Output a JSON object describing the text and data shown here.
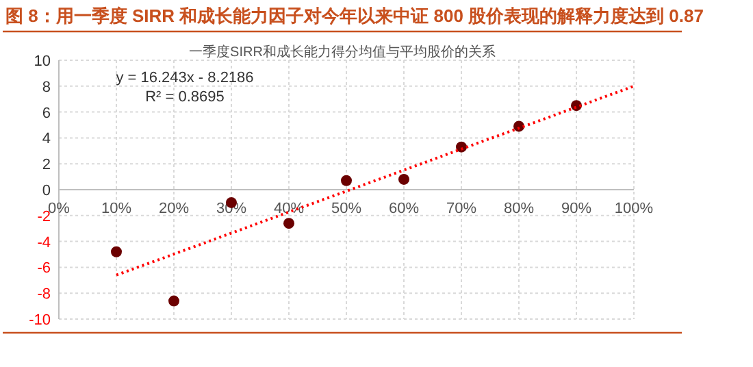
{
  "chart_data": {
    "type": "scatter",
    "title": "图 8：用一季度 SIRR 和成长能力因子对今年以来中证 800 股价表现的解释力度达到 0.87",
    "subtitle": "一季度SIRR和成长能力得分均值与平均股价的关系",
    "annotations": [
      "y = 16.243x - 8.2186",
      "R² = 0.8695"
    ],
    "xlim": [
      0,
      100
    ],
    "ylim": [
      -10,
      10
    ],
    "xticks": [
      {
        "value": 0,
        "label": "0%"
      },
      {
        "value": 10,
        "label": "10%"
      },
      {
        "value": 20,
        "label": "20%"
      },
      {
        "value": 30,
        "label": "30%"
      },
      {
        "value": 40,
        "label": "40%"
      },
      {
        "value": 50,
        "label": "50%"
      },
      {
        "value": 60,
        "label": "60%"
      },
      {
        "value": 70,
        "label": "70%"
      },
      {
        "value": 80,
        "label": "80%"
      },
      {
        "value": 90,
        "label": "90%"
      },
      {
        "value": 100,
        "label": "100%"
      }
    ],
    "yticks": [
      -10,
      -8,
      -6,
      -4,
      -2,
      0,
      2,
      4,
      6,
      8,
      10
    ],
    "grid": true,
    "marker": "circle",
    "series": [
      {
        "type": "scatter",
        "color": "#6b0000",
        "x": [
          10,
          20,
          30,
          40,
          50,
          60,
          70,
          80,
          90
        ],
        "values": [
          -4.8,
          -8.6,
          -1.0,
          -2.6,
          0.7,
          0.8,
          3.3,
          4.9,
          6.5
        ]
      },
      {
        "type": "line",
        "color": "#ff0000",
        "line_style": "dotted",
        "marker": "none",
        "x": [
          10,
          100
        ],
        "values": [
          -6.6,
          8.0
        ]
      }
    ]
  }
}
